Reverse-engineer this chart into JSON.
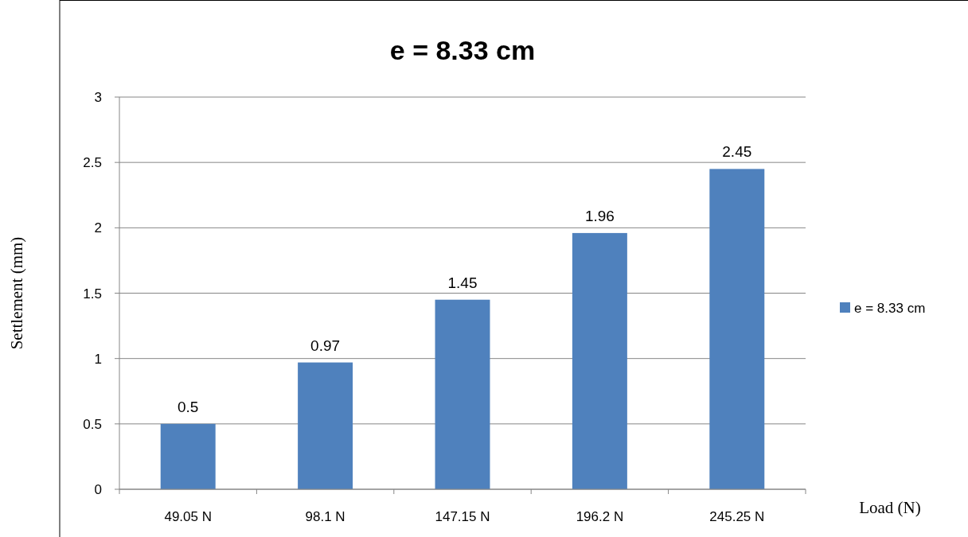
{
  "chart_data": {
    "type": "bar",
    "title": "e = 8.33 cm",
    "xlabel": "Load (N)",
    "ylabel": "Settlement (mm)",
    "categories": [
      "49.05 N",
      "98.1 N",
      "147.15 N",
      "196.2 N",
      "245.25 N"
    ],
    "series": [
      {
        "name": "e = 8.33 cm",
        "color": "#4f81bd",
        "values": [
          0.5,
          0.97,
          1.45,
          1.96,
          2.45
        ]
      }
    ],
    "ylim": [
      0,
      3
    ],
    "yticks": [
      0,
      0.5,
      1,
      1.5,
      2,
      2.5,
      3
    ],
    "grid": "y",
    "legend": "right",
    "data_labels": true
  }
}
